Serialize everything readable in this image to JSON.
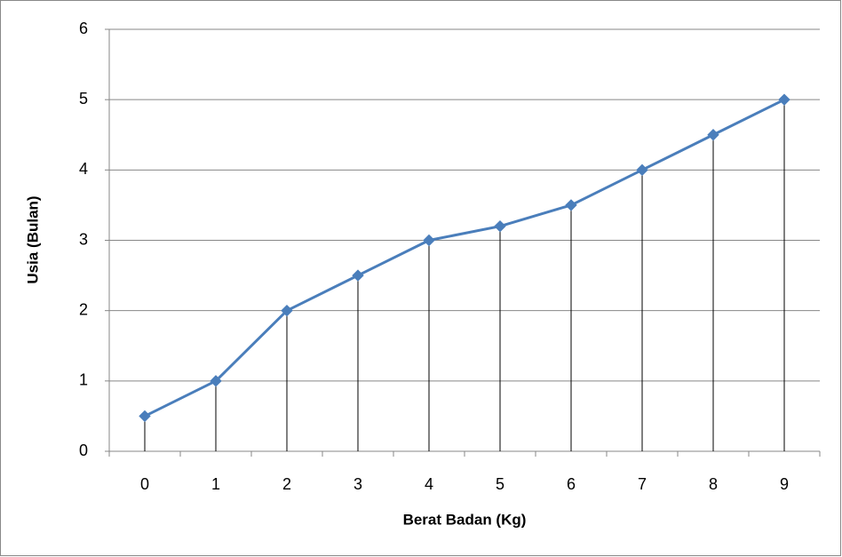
{
  "chart_data": {
    "type": "line",
    "x_label": "Berat Badan (Kg)",
    "y_label": "Usia (Bulan)",
    "categories": [
      "0",
      "1",
      "2",
      "3",
      "4",
      "5",
      "6",
      "7",
      "8",
      "9"
    ],
    "series": [
      {
        "color": "#4a7ebb",
        "values": [
          0.5,
          1,
          2,
          2.5,
          3,
          3.2,
          3.5,
          4,
          4.5,
          5
        ]
      }
    ],
    "ylim": [
      0,
      6
    ],
    "yticks": [
      0,
      1,
      2,
      3,
      4,
      5,
      6
    ],
    "grid": true,
    "drop_lines": true
  }
}
